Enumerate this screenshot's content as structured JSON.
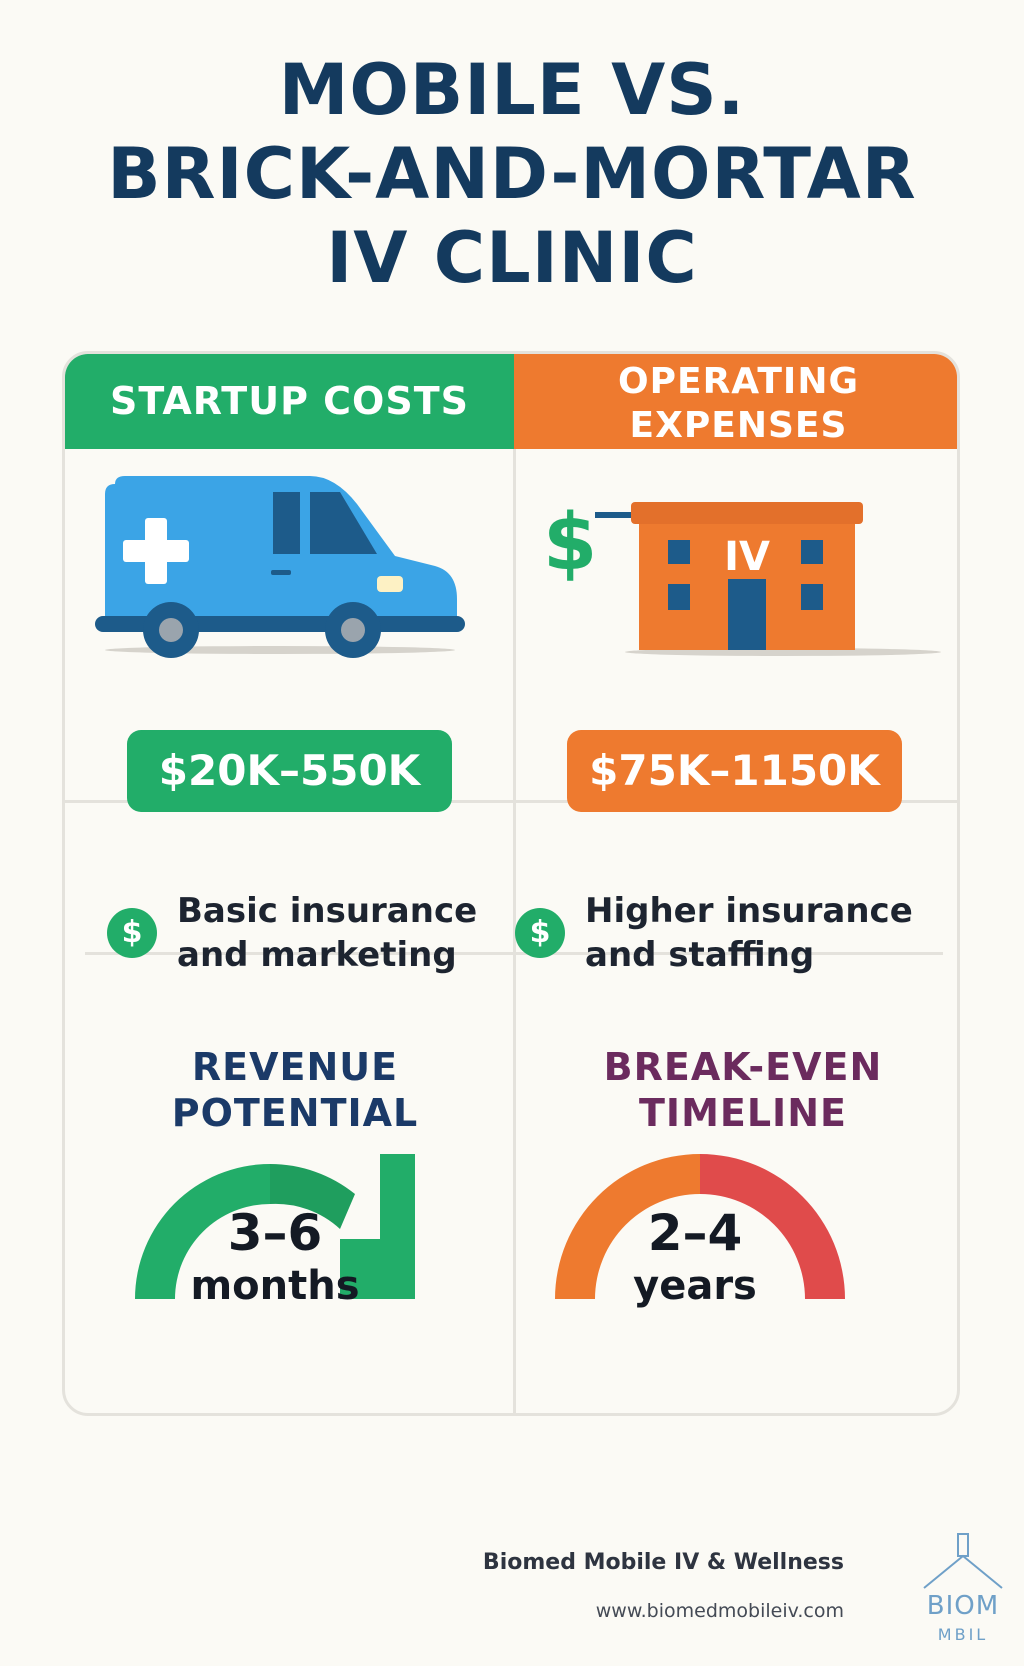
{
  "title": {
    "line1": "MOBILE VS.",
    "line2": "BRICK-AND-MORTAR",
    "line3": "IV CLINIC"
  },
  "columns": {
    "left": {
      "header": "STARTUP COSTS",
      "icon": "van-icon",
      "price": "$20K–550K",
      "note_line1": "Basic insurance",
      "note_line2": "and marketing",
      "metric_title_line1": "REVENUE",
      "metric_title_line2": "POTENTIAL",
      "gauge_value": "3–6",
      "gauge_unit": "months",
      "color": "#22ad69"
    },
    "right": {
      "header_line1": "OPERATING",
      "header_line2": "EXPENSES",
      "icon": "clinic-building-icon",
      "building_sign": "IV",
      "price": "$75K–1150K",
      "note_line1": "Higher insurance",
      "note_line2": "and staffing",
      "metric_title_line1": "BREAK-EVEN",
      "metric_title_line2": "TIMELINE",
      "gauge_value": "2–4",
      "gauge_unit": "years",
      "color": "#ee7a2f"
    }
  },
  "coin_symbol": "$",
  "footer": {
    "name": "Biomed Mobile IV & Wellness",
    "url": "www.biomedmobileiv.com",
    "logo_line1": "BIOM",
    "logo_line2": "MBIL"
  },
  "colors": {
    "navy": "#143a5e",
    "green": "#22ad69",
    "orange": "#ee7a2f",
    "red": "#e04b4b",
    "plum": "#6b2b5e"
  }
}
